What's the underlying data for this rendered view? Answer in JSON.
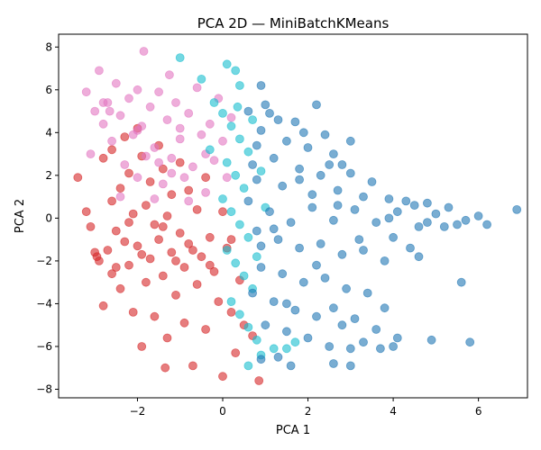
{
  "chart_data": {
    "type": "scatter",
    "title": "PCA 2D — MiniBatchKMeans",
    "xlabel": "PCA 1",
    "ylabel": "PCA 2",
    "xlim": [
      -3.85,
      7.15
    ],
    "ylim": [
      -8.4,
      8.6
    ],
    "xticks": [
      -2,
      0,
      2,
      4,
      6
    ],
    "yticks": [
      -8,
      -6,
      -4,
      -2,
      0,
      2,
      4,
      6,
      8
    ],
    "xtick_labels": [
      "−2",
      "0",
      "2",
      "4",
      "6"
    ],
    "ytick_labels": [
      "−8",
      "−6",
      "−4",
      "−2",
      "0",
      "2",
      "4",
      "6",
      "8"
    ],
    "grid": false,
    "legend": "none",
    "marker_alpha": 0.6,
    "series": [
      {
        "color": "#d62728",
        "points": [
          [
            -3.4,
            1.9
          ],
          [
            -3.2,
            0.3
          ],
          [
            -3.1,
            -0.4
          ],
          [
            -3.0,
            -1.6
          ],
          [
            -2.9,
            -2.0
          ],
          [
            -2.8,
            2.8
          ],
          [
            -2.8,
            -4.1
          ],
          [
            -2.6,
            3.2
          ],
          [
            -2.6,
            0.8
          ],
          [
            -2.6,
            -2.6
          ],
          [
            -2.5,
            -0.6
          ],
          [
            -2.4,
            1.4
          ],
          [
            -2.4,
            -3.3
          ],
          [
            -2.3,
            3.8
          ],
          [
            -2.3,
            -1.1
          ],
          [
            -2.2,
            2.1
          ],
          [
            -2.2,
            -2.2
          ],
          [
            -2.1,
            0.2
          ],
          [
            -2.1,
            -4.4
          ],
          [
            -2.0,
            4.2
          ],
          [
            -2.0,
            -1.3
          ],
          [
            -1.9,
            2.9
          ],
          [
            -1.9,
            -6.0
          ],
          [
            -1.8,
            0.6
          ],
          [
            -1.8,
            -3.0
          ],
          [
            -1.7,
            1.7
          ],
          [
            -1.7,
            -1.9
          ],
          [
            -1.6,
            -0.3
          ],
          [
            -1.6,
            -4.6
          ],
          [
            -1.5,
            3.4
          ],
          [
            -1.5,
            -1.0
          ],
          [
            -1.4,
            2.3
          ],
          [
            -1.4,
            -2.7
          ],
          [
            -1.3,
            0.1
          ],
          [
            -1.3,
            -5.6
          ],
          [
            -1.2,
            1.1
          ],
          [
            -1.2,
            -1.6
          ],
          [
            -1.1,
            -3.6
          ],
          [
            -1.0,
            2.6
          ],
          [
            -1.0,
            -0.7
          ],
          [
            -0.9,
            -2.3
          ],
          [
            -0.9,
            -4.9
          ],
          [
            -0.8,
            1.3
          ],
          [
            -0.8,
            -1.2
          ],
          [
            -0.7,
            -6.9
          ],
          [
            -0.6,
            0.4
          ],
          [
            -0.6,
            -3.1
          ],
          [
            -0.5,
            -1.8
          ],
          [
            -0.4,
            1.9
          ],
          [
            -0.4,
            -5.2
          ],
          [
            -0.3,
            -0.9
          ],
          [
            -0.2,
            -2.5
          ],
          [
            -0.1,
            -3.9
          ],
          [
            0.0,
            0.3
          ],
          [
            0.0,
            -7.4
          ],
          [
            0.1,
            -1.4
          ],
          [
            0.2,
            -4.4
          ],
          [
            0.3,
            -6.3
          ],
          [
            0.4,
            -2.9
          ],
          [
            0.5,
            -5.0
          ],
          [
            -2.95,
            -1.8
          ],
          [
            -2.7,
            -1.5
          ],
          [
            -2.5,
            -2.3
          ],
          [
            -2.2,
            -0.2
          ],
          [
            -1.9,
            -1.7
          ],
          [
            -1.4,
            -0.4
          ],
          [
            -1.1,
            -2.0
          ],
          [
            -0.7,
            -1.5
          ],
          [
            -0.3,
            -2.2
          ],
          [
            0.2,
            -1.0
          ],
          [
            0.85,
            -7.6
          ],
          [
            0.7,
            -5.5
          ],
          [
            -1.35,
            -7.0
          ]
        ]
      },
      {
        "color": "#e377c2",
        "points": [
          [
            -3.2,
            5.9
          ],
          [
            -3.0,
            5.0
          ],
          [
            -3.1,
            3.0
          ],
          [
            -2.9,
            6.9
          ],
          [
            -2.8,
            4.4
          ],
          [
            -2.7,
            5.4
          ],
          [
            -2.6,
            3.6
          ],
          [
            -2.5,
            6.3
          ],
          [
            -2.4,
            4.8
          ],
          [
            -2.3,
            2.5
          ],
          [
            -2.2,
            5.6
          ],
          [
            -2.1,
            3.9
          ],
          [
            -2.0,
            6.0
          ],
          [
            -1.9,
            4.3
          ],
          [
            -1.8,
            2.9
          ],
          [
            -1.7,
            5.2
          ],
          [
            -1.6,
            3.3
          ],
          [
            -1.5,
            5.9
          ],
          [
            -1.4,
            1.6
          ],
          [
            -1.3,
            4.6
          ],
          [
            -1.2,
            2.8
          ],
          [
            -1.1,
            5.4
          ],
          [
            -1.0,
            3.7
          ],
          [
            -0.9,
            1.9
          ],
          [
            -0.8,
            4.9
          ],
          [
            -0.7,
            2.4
          ],
          [
            -0.6,
            6.1
          ],
          [
            -0.5,
            3.9
          ],
          [
            -0.4,
            1.2
          ],
          [
            -0.3,
            4.4
          ],
          [
            -0.2,
            2.7
          ],
          [
            -0.1,
            5.6
          ],
          [
            0.0,
            3.6
          ],
          [
            0.1,
            1.9
          ],
          [
            0.2,
            4.7
          ],
          [
            -2.4,
            1.0
          ],
          [
            -2.0,
            1.9
          ],
          [
            -1.6,
            0.9
          ],
          [
            -1.2,
            2.1
          ],
          [
            -0.8,
            0.8
          ],
          [
            -1.85,
            7.8
          ],
          [
            -1.25,
            6.7
          ],
          [
            -2.65,
            5.0
          ],
          [
            -2.0,
            4.1
          ],
          [
            -1.0,
            4.2
          ],
          [
            -0.4,
            3.0
          ],
          [
            -1.5,
            2.6
          ],
          [
            -2.8,
            5.4
          ]
        ]
      },
      {
        "color": "#17becf",
        "points": [
          [
            -1.0,
            7.5
          ],
          [
            -0.5,
            6.5
          ],
          [
            0.1,
            7.2
          ],
          [
            0.3,
            6.9
          ],
          [
            0.4,
            6.2
          ],
          [
            -0.2,
            5.4
          ],
          [
            0.0,
            4.9
          ],
          [
            0.2,
            4.3
          ],
          [
            0.4,
            3.7
          ],
          [
            0.6,
            3.1
          ],
          [
            0.1,
            2.6
          ],
          [
            0.3,
            2.0
          ],
          [
            0.5,
            1.4
          ],
          [
            0.0,
            0.9
          ],
          [
            0.2,
            0.3
          ],
          [
            0.4,
            -0.3
          ],
          [
            0.6,
            -0.9
          ],
          [
            0.1,
            -1.5
          ],
          [
            0.3,
            -2.1
          ],
          [
            0.5,
            -2.7
          ],
          [
            0.7,
            -3.3
          ],
          [
            0.2,
            -3.9
          ],
          [
            0.4,
            -4.5
          ],
          [
            0.6,
            -5.1
          ],
          [
            0.8,
            -5.7
          ],
          [
            1.2,
            -6.1
          ],
          [
            1.5,
            -6.1
          ],
          [
            0.6,
            -6.9
          ],
          [
            0.9,
            -6.4
          ],
          [
            1.7,
            -5.8
          ],
          [
            -0.3,
            3.2
          ],
          [
            0.7,
            4.6
          ],
          [
            0.9,
            2.2
          ],
          [
            0.8,
            -1.8
          ],
          [
            1.0,
            0.5
          ],
          [
            0.35,
            5.2
          ]
        ]
      },
      {
        "color": "#1f77b4",
        "points": [
          [
            0.9,
            6.2
          ],
          [
            1.0,
            5.3
          ],
          [
            0.6,
            5.0
          ],
          [
            1.3,
            4.6
          ],
          [
            1.7,
            4.5
          ],
          [
            2.2,
            5.3
          ],
          [
            1.9,
            4.0
          ],
          [
            2.4,
            3.9
          ],
          [
            1.5,
            3.6
          ],
          [
            2.0,
            3.3
          ],
          [
            2.6,
            3.0
          ],
          [
            2.8,
            2.5
          ],
          [
            1.2,
            2.8
          ],
          [
            1.8,
            2.3
          ],
          [
            2.3,
            2.0
          ],
          [
            3.0,
            2.1
          ],
          [
            3.5,
            1.7
          ],
          [
            0.8,
            1.8
          ],
          [
            1.4,
            1.5
          ],
          [
            2.1,
            1.1
          ],
          [
            2.7,
            1.3
          ],
          [
            3.3,
            1.0
          ],
          [
            3.9,
            0.9
          ],
          [
            4.3,
            0.8
          ],
          [
            4.8,
            0.7
          ],
          [
            5.3,
            0.5
          ],
          [
            5.7,
            -0.1
          ],
          [
            6.2,
            -0.3
          ],
          [
            6.9,
            0.4
          ],
          [
            6.0,
            0.1
          ],
          [
            5.5,
            -0.3
          ],
          [
            5.0,
            0.2
          ],
          [
            4.6,
            -0.4
          ],
          [
            4.1,
            0.3
          ],
          [
            3.6,
            -0.2
          ],
          [
            3.1,
            0.4
          ],
          [
            2.6,
            -0.1
          ],
          [
            2.1,
            0.5
          ],
          [
            1.6,
            -0.2
          ],
          [
            1.1,
            0.3
          ],
          [
            0.8,
            -0.6
          ],
          [
            1.3,
            -1.0
          ],
          [
            1.8,
            -1.4
          ],
          [
            2.3,
            -1.2
          ],
          [
            2.8,
            -1.7
          ],
          [
            3.3,
            -1.5
          ],
          [
            3.8,
            -2.0
          ],
          [
            4.4,
            -1.4
          ],
          [
            4.6,
            -1.8
          ],
          [
            5.6,
            -3.0
          ],
          [
            0.9,
            -2.3
          ],
          [
            1.4,
            -2.6
          ],
          [
            1.9,
            -3.0
          ],
          [
            2.4,
            -2.8
          ],
          [
            2.9,
            -3.3
          ],
          [
            3.4,
            -3.5
          ],
          [
            3.8,
            -4.2
          ],
          [
            0.7,
            -3.5
          ],
          [
            1.2,
            -3.9
          ],
          [
            1.7,
            -4.3
          ],
          [
            2.2,
            -4.6
          ],
          [
            2.6,
            -4.2
          ],
          [
            3.1,
            -4.7
          ],
          [
            3.6,
            -5.2
          ],
          [
            4.1,
            -5.6
          ],
          [
            4.9,
            -5.7
          ],
          [
            5.8,
            -5.8
          ],
          [
            1.0,
            -5.0
          ],
          [
            1.5,
            -5.3
          ],
          [
            2.0,
            -5.6
          ],
          [
            2.5,
            -6.0
          ],
          [
            3.0,
            -6.1
          ],
          [
            3.7,
            -6.1
          ],
          [
            1.6,
            -6.9
          ],
          [
            2.6,
            -6.8
          ],
          [
            3.0,
            -6.9
          ],
          [
            0.9,
            -6.6
          ],
          [
            1.3,
            -6.5
          ],
          [
            4.0,
            -6.0
          ],
          [
            3.3,
            -5.8
          ],
          [
            0.9,
            4.1
          ],
          [
            0.7,
            2.5
          ],
          [
            1.1,
            4.9
          ],
          [
            0.6,
            0.8
          ],
          [
            0.9,
            -1.3
          ],
          [
            2.5,
            2.5
          ],
          [
            3.2,
            -1.0
          ],
          [
            4.5,
            0.6
          ],
          [
            4.0,
            -0.9
          ],
          [
            3.0,
            3.6
          ],
          [
            2.2,
            -2.2
          ],
          [
            1.5,
            -4.0
          ],
          [
            2.8,
            -5.0
          ],
          [
            1.8,
            1.8
          ],
          [
            1.2,
            -0.5
          ],
          [
            2.7,
            0.6
          ],
          [
            3.9,
            0.0
          ],
          [
            4.8,
            -0.2
          ],
          [
            5.2,
            -0.4
          ],
          [
            0.8,
            3.4
          ]
        ]
      }
    ]
  }
}
